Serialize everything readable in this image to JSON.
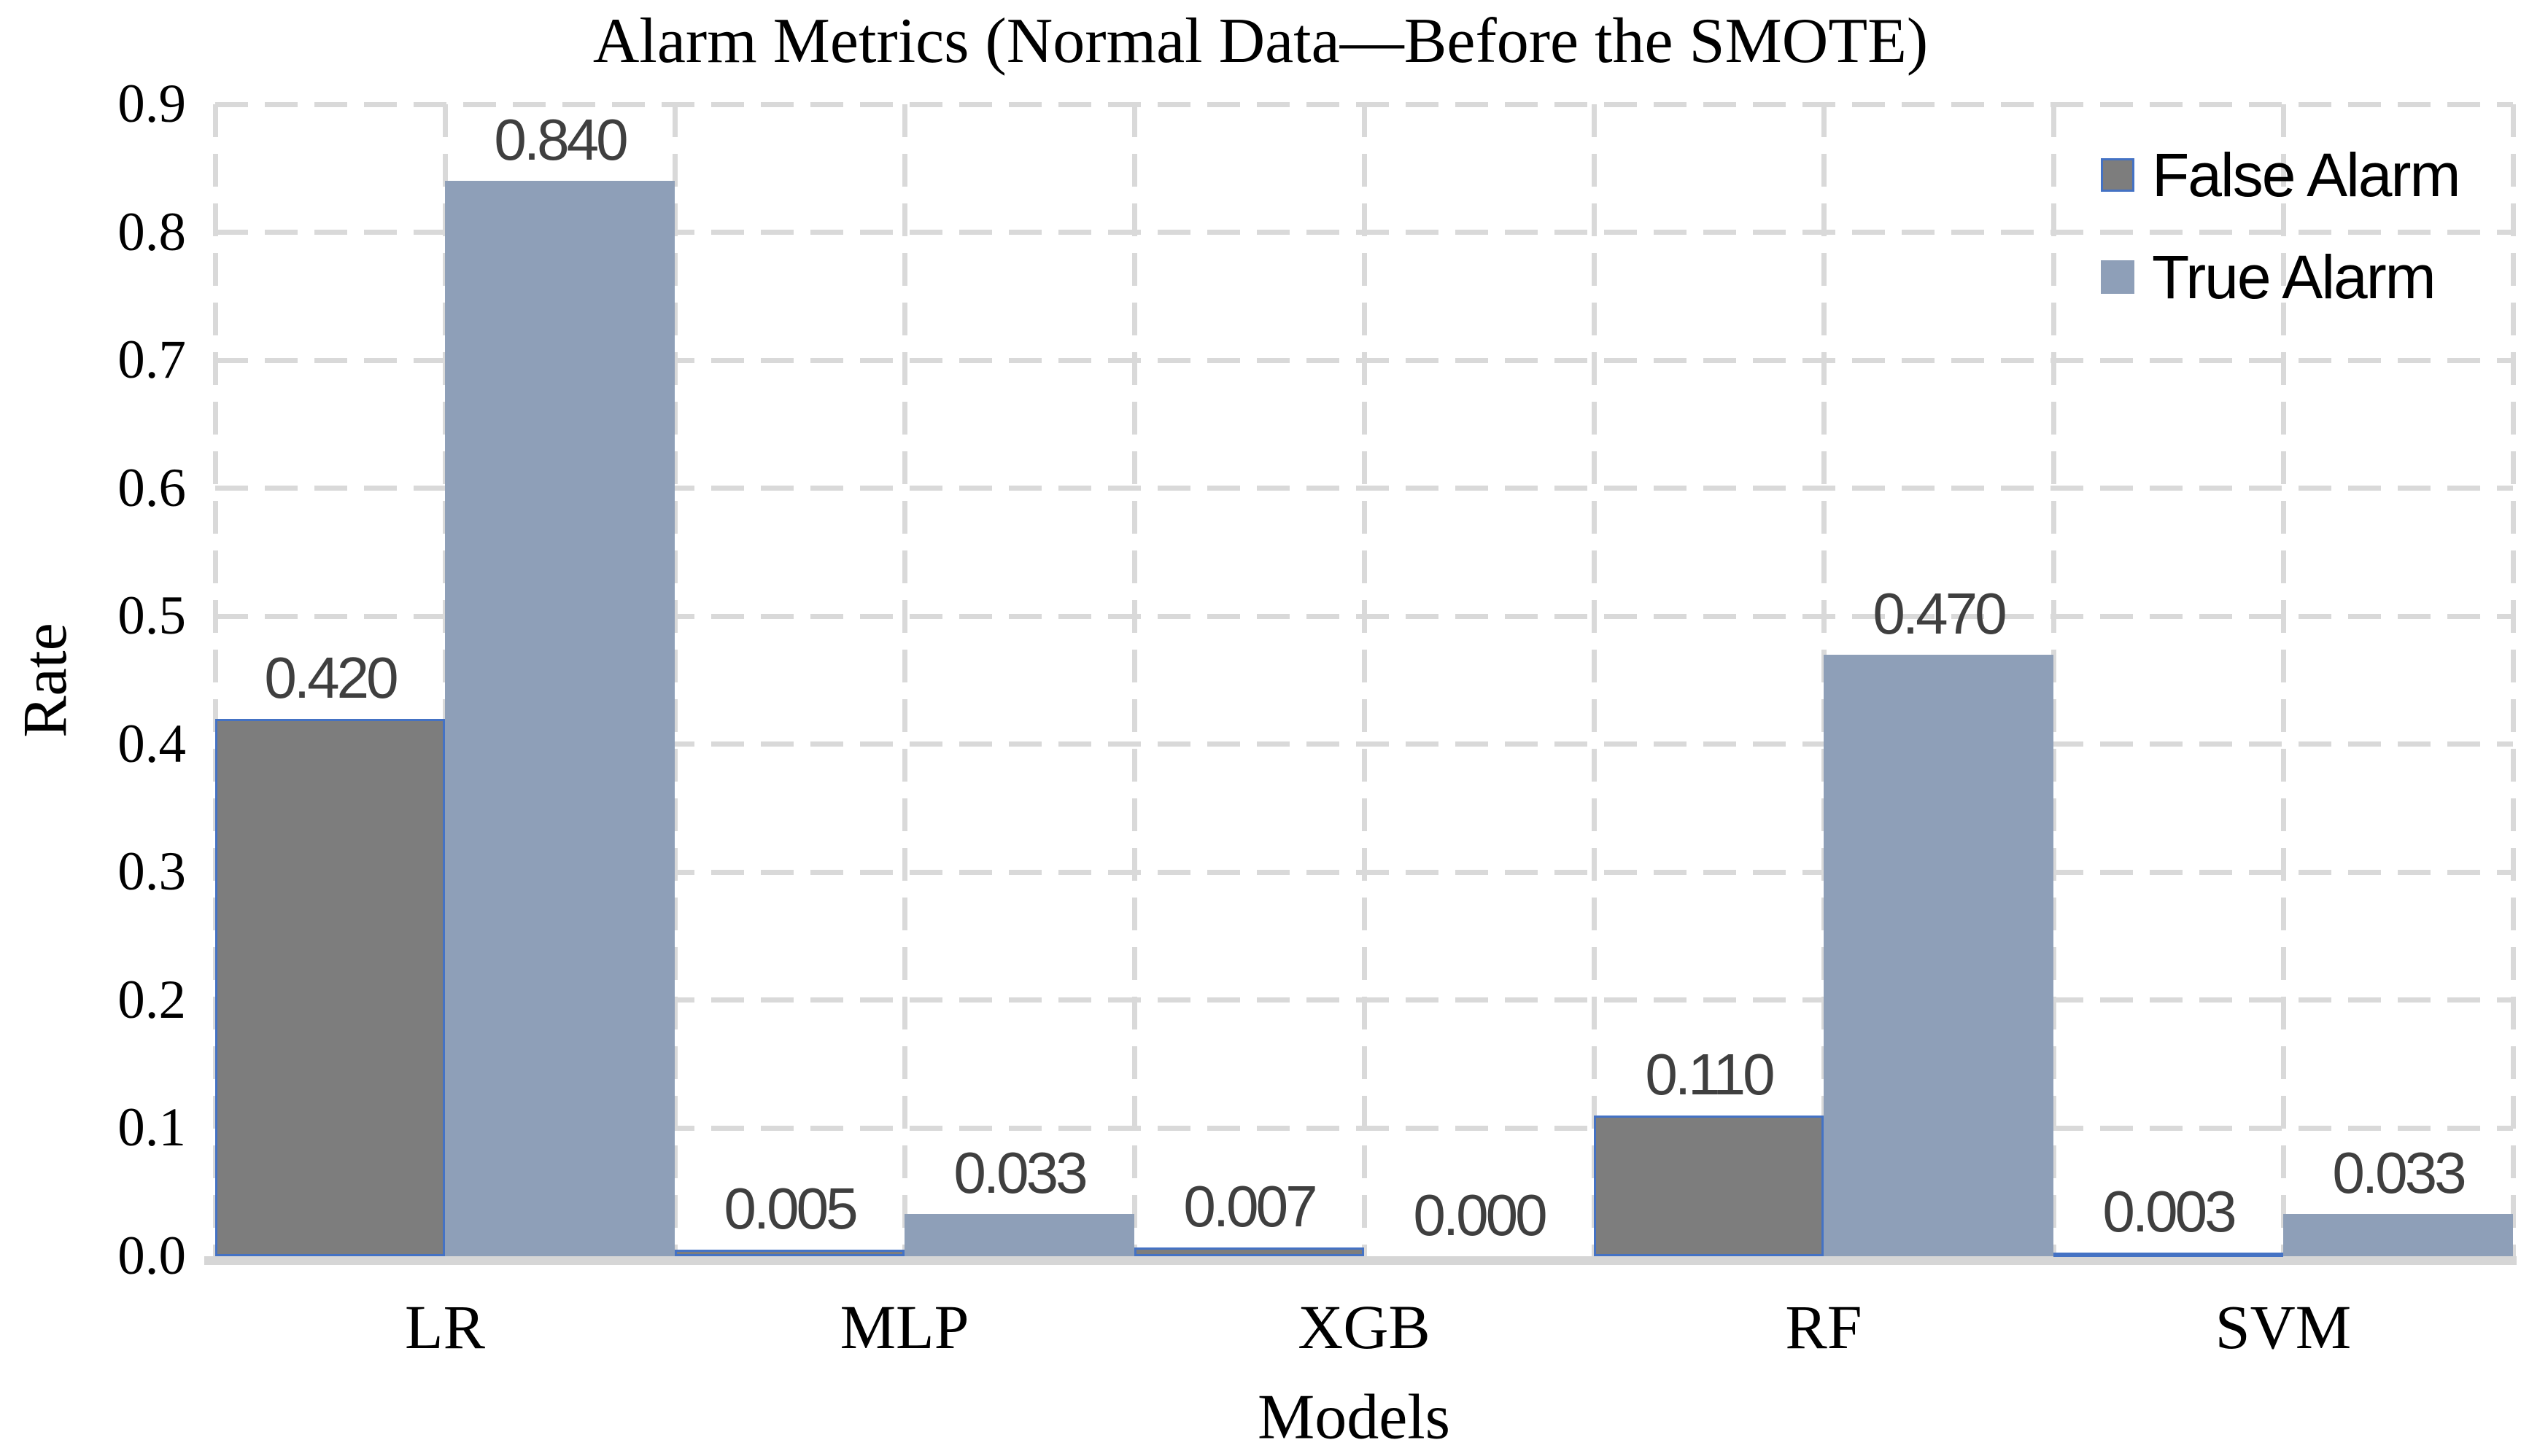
{
  "title": "Alarm Metrics (Normal Data—Before the SMOTE)",
  "colors": {
    "background": "#ffffff",
    "gridline": "#d9d9d9",
    "axis_line": "#d6d6d6",
    "value_label_text": "#3f3f3f",
    "axis_text": "#000000",
    "false_alarm_fill": "#7d7d7d",
    "false_alarm_border": "#4472c4",
    "true_alarm_fill": "#8e9fb8"
  },
  "chart_data": {
    "type": "bar",
    "title": "Alarm Metrics (Normal Data—Before the SMOTE)",
    "xlabel": "Models",
    "ylabel": "Rate",
    "categories": [
      "LR",
      "MLP",
      "XGB",
      "RF",
      "SVM"
    ],
    "series": [
      {
        "name": "False Alarm",
        "color": "#7d7d7d",
        "border_color": "#4472c4",
        "values": [
          0.42,
          0.005,
          0.007,
          0.11,
          0.003
        ],
        "value_labels": [
          "0.420",
          "0.005",
          "0.007",
          "0.110",
          "0.003"
        ]
      },
      {
        "name": "True Alarm",
        "color": "#8e9fb8",
        "border_color": "#8e9fb8",
        "values": [
          0.84,
          0.033,
          0.0,
          0.47,
          0.033
        ],
        "value_labels": [
          "0.840",
          "0.033",
          "0.000",
          "0.470",
          "0.033"
        ]
      }
    ],
    "ylim": [
      0.0,
      0.9
    ],
    "ytick_step": 0.1,
    "y_tick_labels": [
      "0.0",
      "0.1",
      "0.2",
      "0.3",
      "0.4",
      "0.5",
      "0.6",
      "0.7",
      "0.8",
      "0.9"
    ],
    "grid": "dashed horizontal and vertical",
    "legend_position": "top-right inside plot",
    "legend_entries": [
      "False Alarm",
      "True Alarm"
    ]
  }
}
